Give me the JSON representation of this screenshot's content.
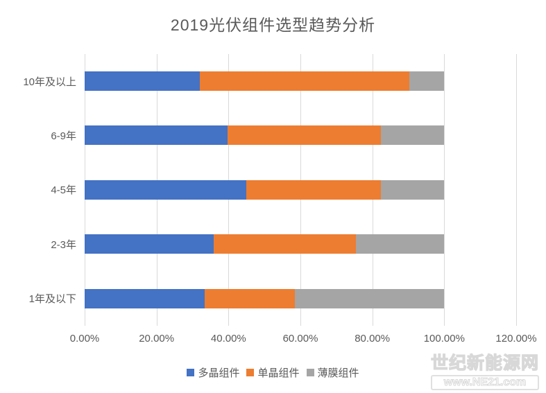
{
  "title": "2019光伏组件选型趋势分析",
  "chart_data": {
    "type": "bar",
    "orientation": "horizontal",
    "stacked": true,
    "title": "2019光伏组件选型趋势分析",
    "categories": [
      "10年及以上",
      "6-9年",
      "4-5年",
      "2-3年",
      "1年及以下"
    ],
    "series": [
      {
        "name": "多晶组件",
        "color": "#4472C4",
        "values": [
          32.0,
          39.7,
          45.0,
          35.9,
          33.4
        ]
      },
      {
        "name": "单晶组件",
        "color": "#ED7D31",
        "values": [
          58.2,
          42.7,
          37.4,
          39.6,
          25.1
        ]
      },
      {
        "name": "薄膜组件",
        "color": "#A5A5A5",
        "values": [
          9.8,
          17.6,
          17.6,
          24.5,
          41.5
        ]
      }
    ],
    "x_axis": {
      "min": 0,
      "max": 120,
      "tick_labels": [
        "0.00%",
        "20.00%",
        "40.00%",
        "60.00%",
        "80.00%",
        "100.00%",
        "120.00%"
      ]
    },
    "grid": true,
    "legend_position": "bottom",
    "gridline_color": "#D9D9D9",
    "text_color": "#595959"
  },
  "watermark": {
    "line1": "世纪新能源网",
    "line2": "www.NE21.com"
  }
}
